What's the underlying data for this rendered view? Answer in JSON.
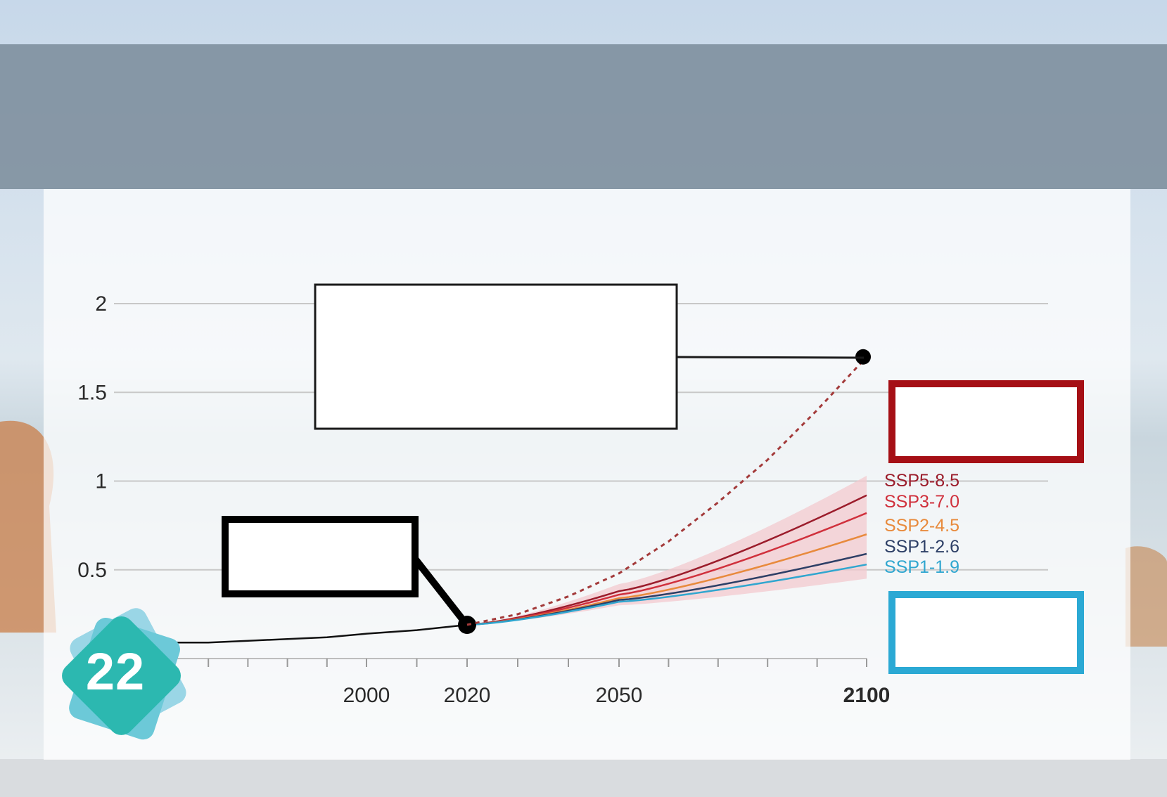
{
  "colors": {
    "banner": "#7a8b98",
    "observed": "#111111",
    "dashed": "#a33a3a",
    "box_red": "#a50f15",
    "box_blue": "#2ba9d4",
    "badge_teal": "#2cb8b0",
    "badge_light": "#8fd3e4"
  },
  "badge": {
    "number": "22",
    "icon": "stacked-cards-icon"
  },
  "chart_data": {
    "type": "line",
    "title": "",
    "xlabel": "",
    "ylabel": "",
    "xlim": [
      1950,
      2110
    ],
    "ylim": [
      0,
      2
    ],
    "yticks": [
      0.5,
      1,
      1.5,
      2
    ],
    "ytick_labels": [
      "0.5",
      "1",
      "1.5",
      "2"
    ],
    "xticks": [
      2000,
      2020,
      2050,
      2100
    ],
    "xtick_labels": [
      "2000",
      "2020",
      "2050",
      "2100"
    ],
    "grid": true,
    "legend_position": "right",
    "observed": {
      "x": [
        1950,
        1960,
        1970,
        1980,
        1990,
        2000,
        2010,
        2020
      ],
      "y": [
        0.09,
        0.09,
        0.1,
        0.11,
        0.12,
        0.14,
        0.16,
        0.19
      ]
    },
    "high_end_projection": {
      "x": [
        2020,
        2030,
        2040,
        2050,
        2060,
        2070,
        2080,
        2090,
        2100
      ],
      "y": [
        0.19,
        0.25,
        0.35,
        0.48,
        0.66,
        0.88,
        1.12,
        1.4,
        1.7
      ],
      "style": "dashed"
    },
    "x": [
      2020,
      2050,
      2100
    ],
    "series": [
      {
        "name": "SSP5-8.5",
        "color": "#9b1c2b",
        "values": [
          0.19,
          0.38,
          0.92
        ]
      },
      {
        "name": "SSP3-7.0",
        "color": "#d0303c",
        "values": [
          0.19,
          0.36,
          0.82
        ]
      },
      {
        "name": "SSP2-4.5",
        "color": "#e88a3c",
        "values": [
          0.19,
          0.34,
          0.7
        ]
      },
      {
        "name": "SSP1-2.6",
        "color": "#2d3f66",
        "values": [
          0.19,
          0.33,
          0.59
        ]
      },
      {
        "name": "SSP1-1.9",
        "color": "#30a6cf",
        "values": [
          0.19,
          0.32,
          0.53
        ]
      }
    ],
    "uncertainty_band": {
      "x": [
        2020,
        2050,
        2100
      ],
      "low": [
        0.19,
        0.3,
        0.45
      ],
      "high": [
        0.19,
        0.42,
        1.03
      ]
    }
  }
}
